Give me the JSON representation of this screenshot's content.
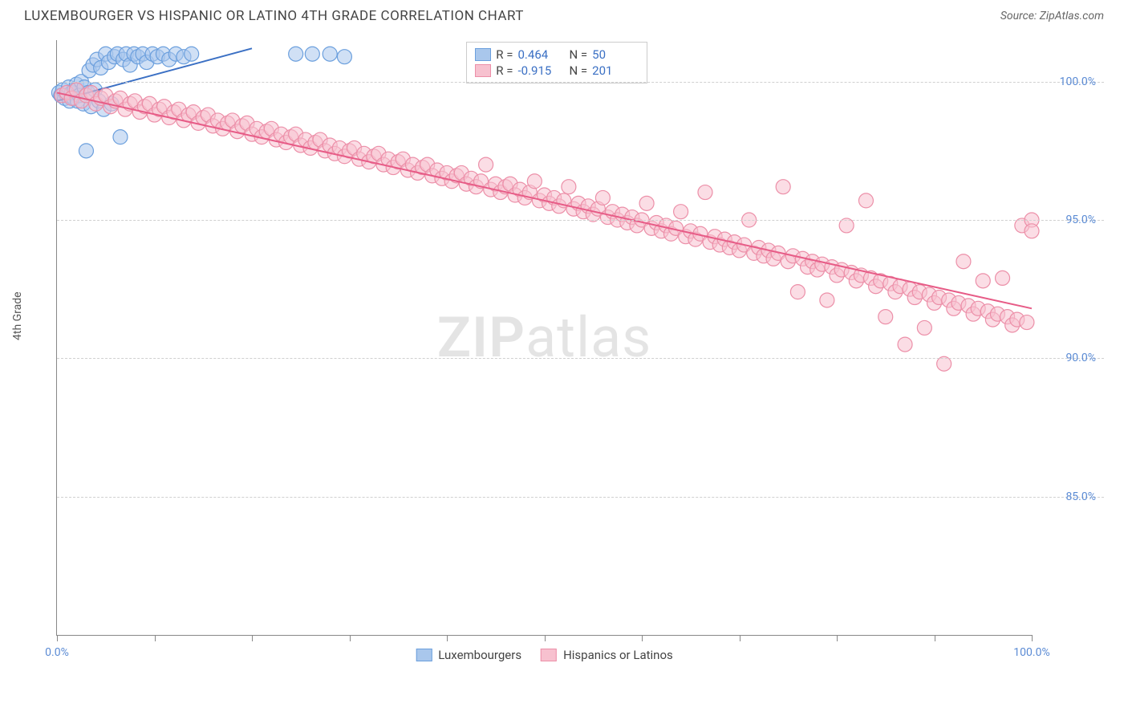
{
  "header": {
    "title": "LUXEMBOURGER VS HISPANIC OR LATINO 4TH GRADE CORRELATION CHART",
    "source": "Source: ZipAtlas.com"
  },
  "watermark": {
    "zip": "ZIP",
    "atlas": "atlas"
  },
  "chart": {
    "type": "scatter",
    "ylabel": "4th Grade",
    "xlim": [
      0,
      100
    ],
    "ylim": [
      80,
      101.5
    ],
    "xtick_positions": [
      0,
      10,
      20,
      30,
      40,
      50,
      60,
      70,
      80,
      90,
      100
    ],
    "xtick_labels": {
      "0": "0.0%",
      "100": "100.0%"
    },
    "ytick_positions": [
      85,
      90,
      95,
      100
    ],
    "ytick_labels": {
      "85": "85.0%",
      "90": "90.0%",
      "95": "95.0%",
      "100": "100.0%"
    },
    "grid_color": "#d0d0d0",
    "axis_color": "#888888",
    "tick_label_color": "#5b8bd4",
    "background_color": "#ffffff",
    "marker_radius": 9,
    "marker_stroke_width": 1.2,
    "line_width": 2,
    "series": [
      {
        "name": "Luxembourgers",
        "fill": "#a9c7ec",
        "stroke": "#6b9fdd",
        "fill_opacity": 0.55,
        "line_color": "#3b70c4",
        "R": "0.464",
        "N": "50",
        "trend": {
          "x1": 0,
          "y1": 99.3,
          "x2": 20,
          "y2": 101.2
        },
        "points": [
          [
            0.2,
            99.6
          ],
          [
            0.4,
            99.5
          ],
          [
            0.6,
            99.7
          ],
          [
            0.8,
            99.4
          ],
          [
            1.0,
            99.5
          ],
          [
            1.2,
            99.8
          ],
          [
            1.3,
            99.3
          ],
          [
            1.5,
            99.6
          ],
          [
            1.7,
            99.4
          ],
          [
            1.8,
            99.7
          ],
          [
            2.0,
            99.9
          ],
          [
            2.1,
            99.3
          ],
          [
            2.3,
            99.5
          ],
          [
            2.5,
            100.0
          ],
          [
            2.7,
            99.2
          ],
          [
            2.8,
            99.8
          ],
          [
            3.0,
            97.5
          ],
          [
            3.2,
            99.6
          ],
          [
            3.3,
            100.4
          ],
          [
            3.5,
            99.1
          ],
          [
            3.7,
            100.6
          ],
          [
            3.9,
            99.7
          ],
          [
            4.1,
            100.8
          ],
          [
            4.3,
            99.3
          ],
          [
            4.5,
            100.5
          ],
          [
            4.8,
            99.0
          ],
          [
            5.0,
            101.0
          ],
          [
            5.3,
            100.7
          ],
          [
            5.6,
            99.2
          ],
          [
            5.9,
            100.9
          ],
          [
            6.2,
            101.0
          ],
          [
            6.5,
            98.0
          ],
          [
            6.8,
            100.8
          ],
          [
            7.1,
            101.0
          ],
          [
            7.5,
            100.6
          ],
          [
            7.9,
            101.0
          ],
          [
            8.3,
            100.9
          ],
          [
            8.8,
            101.0
          ],
          [
            9.2,
            100.7
          ],
          [
            9.8,
            101.0
          ],
          [
            10.3,
            100.9
          ],
          [
            10.9,
            101.0
          ],
          [
            11.5,
            100.8
          ],
          [
            12.2,
            101.0
          ],
          [
            13.0,
            100.9
          ],
          [
            13.8,
            101.0
          ],
          [
            24.5,
            101.0
          ],
          [
            26.2,
            101.0
          ],
          [
            28.0,
            101.0
          ],
          [
            29.5,
            100.9
          ]
        ]
      },
      {
        "name": "Hispanics or Latinos",
        "fill": "#f7c1cf",
        "stroke": "#ec8fa8",
        "fill_opacity": 0.55,
        "line_color": "#e75c87",
        "R": "-0.915",
        "N": "201",
        "trend": {
          "x1": 0,
          "y1": 99.6,
          "x2": 100,
          "y2": 91.8
        },
        "points": [
          [
            0.5,
            99.5
          ],
          [
            1.0,
            99.6
          ],
          [
            1.5,
            99.4
          ],
          [
            2.0,
            99.7
          ],
          [
            2.5,
            99.3
          ],
          [
            3.0,
            99.5
          ],
          [
            3.5,
            99.6
          ],
          [
            4.0,
            99.2
          ],
          [
            4.5,
            99.4
          ],
          [
            5.0,
            99.5
          ],
          [
            5.5,
            99.1
          ],
          [
            6.0,
            99.3
          ],
          [
            6.5,
            99.4
          ],
          [
            7.0,
            99.0
          ],
          [
            7.5,
            99.2
          ],
          [
            8.0,
            99.3
          ],
          [
            8.5,
            98.9
          ],
          [
            9.0,
            99.1
          ],
          [
            9.5,
            99.2
          ],
          [
            10.0,
            98.8
          ],
          [
            10.5,
            99.0
          ],
          [
            11.0,
            99.1
          ],
          [
            11.5,
            98.7
          ],
          [
            12.0,
            98.9
          ],
          [
            12.5,
            99.0
          ],
          [
            13.0,
            98.6
          ],
          [
            13.5,
            98.8
          ],
          [
            14.0,
            98.9
          ],
          [
            14.5,
            98.5
          ],
          [
            15.0,
            98.7
          ],
          [
            15.5,
            98.8
          ],
          [
            16.0,
            98.4
          ],
          [
            16.5,
            98.6
          ],
          [
            17.0,
            98.3
          ],
          [
            17.5,
            98.5
          ],
          [
            18.0,
            98.6
          ],
          [
            18.5,
            98.2
          ],
          [
            19.0,
            98.4
          ],
          [
            19.5,
            98.5
          ],
          [
            20.0,
            98.1
          ],
          [
            20.5,
            98.3
          ],
          [
            21.0,
            98.0
          ],
          [
            21.5,
            98.2
          ],
          [
            22.0,
            98.3
          ],
          [
            22.5,
            97.9
          ],
          [
            23.0,
            98.1
          ],
          [
            23.5,
            97.8
          ],
          [
            24.0,
            98.0
          ],
          [
            24.5,
            98.1
          ],
          [
            25.0,
            97.7
          ],
          [
            25.5,
            97.9
          ],
          [
            26.0,
            97.6
          ],
          [
            26.5,
            97.8
          ],
          [
            27.0,
            97.9
          ],
          [
            27.5,
            97.5
          ],
          [
            28.0,
            97.7
          ],
          [
            28.5,
            97.4
          ],
          [
            29.0,
            97.6
          ],
          [
            29.5,
            97.3
          ],
          [
            30.0,
            97.5
          ],
          [
            30.5,
            97.6
          ],
          [
            31.0,
            97.2
          ],
          [
            31.5,
            97.4
          ],
          [
            32.0,
            97.1
          ],
          [
            32.5,
            97.3
          ],
          [
            33.0,
            97.4
          ],
          [
            33.5,
            97.0
          ],
          [
            34.0,
            97.2
          ],
          [
            34.5,
            96.9
          ],
          [
            35.0,
            97.1
          ],
          [
            35.5,
            97.2
          ],
          [
            36.0,
            96.8
          ],
          [
            36.5,
            97.0
          ],
          [
            37.0,
            96.7
          ],
          [
            37.5,
            96.9
          ],
          [
            38.0,
            97.0
          ],
          [
            38.5,
            96.6
          ],
          [
            39.0,
            96.8
          ],
          [
            39.5,
            96.5
          ],
          [
            40.0,
            96.7
          ],
          [
            40.5,
            96.4
          ],
          [
            41.0,
            96.6
          ],
          [
            41.5,
            96.7
          ],
          [
            42.0,
            96.3
          ],
          [
            42.5,
            96.5
          ],
          [
            43.0,
            96.2
          ],
          [
            43.5,
            96.4
          ],
          [
            44.0,
            97.0
          ],
          [
            44.5,
            96.1
          ],
          [
            45.0,
            96.3
          ],
          [
            45.5,
            96.0
          ],
          [
            46.0,
            96.2
          ],
          [
            46.5,
            96.3
          ],
          [
            47.0,
            95.9
          ],
          [
            47.5,
            96.1
          ],
          [
            48.0,
            95.8
          ],
          [
            48.5,
            96.0
          ],
          [
            49.0,
            96.4
          ],
          [
            49.5,
            95.7
          ],
          [
            50.0,
            95.9
          ],
          [
            50.5,
            95.6
          ],
          [
            51.0,
            95.8
          ],
          [
            51.5,
            95.5
          ],
          [
            52.0,
            95.7
          ],
          [
            52.5,
            96.2
          ],
          [
            53.0,
            95.4
          ],
          [
            53.5,
            95.6
          ],
          [
            54.0,
            95.3
          ],
          [
            54.5,
            95.5
          ],
          [
            55.0,
            95.2
          ],
          [
            55.5,
            95.4
          ],
          [
            56.0,
            95.8
          ],
          [
            56.5,
            95.1
          ],
          [
            57.0,
            95.3
          ],
          [
            57.5,
            95.0
          ],
          [
            58.0,
            95.2
          ],
          [
            58.5,
            94.9
          ],
          [
            59.0,
            95.1
          ],
          [
            59.5,
            94.8
          ],
          [
            60.0,
            95.0
          ],
          [
            60.5,
            95.6
          ],
          [
            61.0,
            94.7
          ],
          [
            61.5,
            94.9
          ],
          [
            62.0,
            94.6
          ],
          [
            62.5,
            94.8
          ],
          [
            63.0,
            94.5
          ],
          [
            63.5,
            94.7
          ],
          [
            64.0,
            95.3
          ],
          [
            64.5,
            94.4
          ],
          [
            65.0,
            94.6
          ],
          [
            65.5,
            94.3
          ],
          [
            66.0,
            94.5
          ],
          [
            66.5,
            96.0
          ],
          [
            67.0,
            94.2
          ],
          [
            67.5,
            94.4
          ],
          [
            68.0,
            94.1
          ],
          [
            68.5,
            94.3
          ],
          [
            69.0,
            94.0
          ],
          [
            69.5,
            94.2
          ],
          [
            70.0,
            93.9
          ],
          [
            70.5,
            94.1
          ],
          [
            71.0,
            95.0
          ],
          [
            71.5,
            93.8
          ],
          [
            72.0,
            94.0
          ],
          [
            72.5,
            93.7
          ],
          [
            73.0,
            93.9
          ],
          [
            73.5,
            93.6
          ],
          [
            74.0,
            93.8
          ],
          [
            74.5,
            96.2
          ],
          [
            75.0,
            93.5
          ],
          [
            75.5,
            93.7
          ],
          [
            76.0,
            92.4
          ],
          [
            76.5,
            93.6
          ],
          [
            77.0,
            93.3
          ],
          [
            77.5,
            93.5
          ],
          [
            78.0,
            93.2
          ],
          [
            78.5,
            93.4
          ],
          [
            79.0,
            92.1
          ],
          [
            79.5,
            93.3
          ],
          [
            80.0,
            93.0
          ],
          [
            80.5,
            93.2
          ],
          [
            81.0,
            94.8
          ],
          [
            81.5,
            93.1
          ],
          [
            82.0,
            92.8
          ],
          [
            82.5,
            93.0
          ],
          [
            83.0,
            95.7
          ],
          [
            83.5,
            92.9
          ],
          [
            84.0,
            92.6
          ],
          [
            84.5,
            92.8
          ],
          [
            85.0,
            91.5
          ],
          [
            85.5,
            92.7
          ],
          [
            86.0,
            92.4
          ],
          [
            86.5,
            92.6
          ],
          [
            87.0,
            90.5
          ],
          [
            87.5,
            92.5
          ],
          [
            88.0,
            92.2
          ],
          [
            88.5,
            92.4
          ],
          [
            89.0,
            91.1
          ],
          [
            89.5,
            92.3
          ],
          [
            90.0,
            92.0
          ],
          [
            90.5,
            92.2
          ],
          [
            91.0,
            89.8
          ],
          [
            91.5,
            92.1
          ],
          [
            92.0,
            91.8
          ],
          [
            92.5,
            92.0
          ],
          [
            93.0,
            93.5
          ],
          [
            93.5,
            91.9
          ],
          [
            94.0,
            91.6
          ],
          [
            94.5,
            91.8
          ],
          [
            95.0,
            92.8
          ],
          [
            95.5,
            91.7
          ],
          [
            96.0,
            91.4
          ],
          [
            96.5,
            91.6
          ],
          [
            97.0,
            92.9
          ],
          [
            97.5,
            91.5
          ],
          [
            98.0,
            91.2
          ],
          [
            98.5,
            91.4
          ],
          [
            99.0,
            94.8
          ],
          [
            99.5,
            91.3
          ],
          [
            100.0,
            95.0
          ],
          [
            100.0,
            94.6
          ]
        ]
      }
    ],
    "stats_box": {
      "rows": [
        {
          "swatch_fill": "#a9c7ec",
          "swatch_stroke": "#6b9fdd",
          "r_label": "R =",
          "r_val": "0.464",
          "n_label": "N =",
          "n_val": "50"
        },
        {
          "swatch_fill": "#f7c1cf",
          "swatch_stroke": "#ec8fa8",
          "r_label": "R =",
          "r_val": "-0.915",
          "n_label": "N =",
          "n_val": "201"
        }
      ]
    },
    "bottom_legend": [
      {
        "swatch_fill": "#a9c7ec",
        "swatch_stroke": "#6b9fdd",
        "label": "Luxembourgers"
      },
      {
        "swatch_fill": "#f7c1cf",
        "swatch_stroke": "#ec8fa8",
        "label": "Hispanics or Latinos"
      }
    ]
  }
}
